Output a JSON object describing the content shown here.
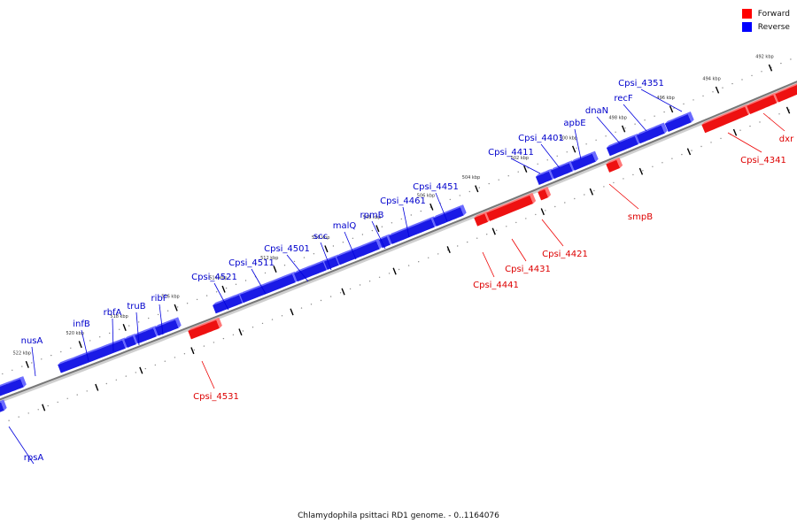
{
  "legend": {
    "items": [
      {
        "label": "Forward",
        "color": "#ff0000"
      },
      {
        "label": "Reverse",
        "color": "#0000ff"
      }
    ]
  },
  "caption": "Chlamydophila psittaci RD1 genome. - 0..1164076",
  "colors": {
    "forward": "#ee1111",
    "reverse": "#1a1ae6",
    "backbone": "#777777"
  },
  "ticks": [
    {
      "label": "522 kbp",
      "pos_kbp": 522
    },
    {
      "label": "520 kbp",
      "pos_kbp": 520
    },
    {
      "label": "518 kbp",
      "pos_kbp": 518
    },
    {
      "label": "516 kbp",
      "pos_kbp": 516
    },
    {
      "label": "514 kbp",
      "pos_kbp": 514
    },
    {
      "label": "512 kbp",
      "pos_kbp": 512
    },
    {
      "label": "510 kbp",
      "pos_kbp": 510
    },
    {
      "label": "508 kbp",
      "pos_kbp": 508
    },
    {
      "label": "506 kbp",
      "pos_kbp": 506
    },
    {
      "label": "504 kbp",
      "pos_kbp": 504
    },
    {
      "label": "502 kbp",
      "pos_kbp": 502
    },
    {
      "label": "500 kbp",
      "pos_kbp": 500
    },
    {
      "label": "498 kbp",
      "pos_kbp": 498
    },
    {
      "label": "496 kbp",
      "pos_kbp": 496
    },
    {
      "label": "494 kbp",
      "pos_kbp": 494
    },
    {
      "label": "492 kbp",
      "pos_kbp": 492
    }
  ],
  "genes": [
    {
      "name": "nusA",
      "strand": "reverse"
    },
    {
      "name": "infB",
      "strand": "reverse"
    },
    {
      "name": "rbfA",
      "strand": "reverse"
    },
    {
      "name": "truB",
      "strand": "reverse"
    },
    {
      "name": "ribF",
      "strand": "reverse"
    },
    {
      "name": "Cpsi_4521",
      "strand": "reverse"
    },
    {
      "name": "Cpsi_4511",
      "strand": "reverse"
    },
    {
      "name": "Cpsi_4501",
      "strand": "reverse"
    },
    {
      "name": "scc",
      "strand": "reverse"
    },
    {
      "name": "malQ",
      "strand": "reverse"
    },
    {
      "name": "rpmB",
      "strand": "reverse"
    },
    {
      "name": "Cpsi_4461",
      "strand": "reverse"
    },
    {
      "name": "Cpsi_4451",
      "strand": "reverse"
    },
    {
      "name": "Cpsi_4411",
      "strand": "reverse"
    },
    {
      "name": "Cpsi_4401",
      "strand": "reverse"
    },
    {
      "name": "apbE",
      "strand": "reverse"
    },
    {
      "name": "dnaN",
      "strand": "reverse"
    },
    {
      "name": "recF",
      "strand": "reverse"
    },
    {
      "name": "Cpsi_4351",
      "strand": "reverse"
    },
    {
      "name": "rpsA",
      "strand": "reverse"
    },
    {
      "name": "Cpsi_4531",
      "strand": "forward"
    },
    {
      "name": "Cpsi_4441",
      "strand": "forward"
    },
    {
      "name": "Cpsi_4431",
      "strand": "forward"
    },
    {
      "name": "Cpsi_4421",
      "strand": "forward"
    },
    {
      "name": "smpB",
      "strand": "forward"
    },
    {
      "name": "Cpsi_4341",
      "strand": "forward"
    },
    {
      "name": "dxr",
      "strand": "forward"
    }
  ]
}
